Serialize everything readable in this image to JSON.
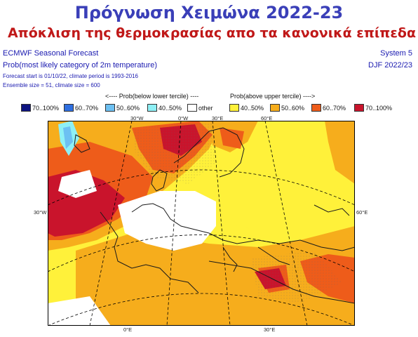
{
  "title": {
    "main": "Πρόγνωση Χειμώνα 2022-23",
    "sub": "Απόκλιση της θερμοκρασίας απο τα κανονικά επίπεδα"
  },
  "header": {
    "left_line1": "ECMWF Seasonal Forecast",
    "left_line2": "Prob(most likely category of 2m temperature)",
    "left_line3": "Forecast start is 01/10/22, climate period is 1993-2016",
    "left_line4": "Ensemble size = 51, climate size = 600",
    "right_line1": "System 5",
    "right_line2": "DJF 2022/23"
  },
  "legend": {
    "lower_caption": "<---- Prob(below lower tercile) ----",
    "upper_caption": "Prob(above upper tercile) ---->",
    "items": [
      {
        "label": "70..100%",
        "color": "#0d1380"
      },
      {
        "label": "60..70%",
        "color": "#2f6fe0"
      },
      {
        "label": "50..60%",
        "color": "#6cc0f2"
      },
      {
        "label": "40..50%",
        "color": "#8ef0f5"
      },
      {
        "label": "other",
        "color": "#ffffff"
      },
      {
        "label": "40..50%",
        "color": "#fff13a"
      },
      {
        "label": "50..60%",
        "color": "#f6ad1c"
      },
      {
        "label": "60..70%",
        "color": "#ee5c1a"
      },
      {
        "label": "70..100%",
        "color": "#c9142c"
      }
    ]
  },
  "map": {
    "lon_labels_top": [
      "30°W",
      "0°W",
      "30°E",
      "60°E"
    ],
    "lon_labels_bottom": [
      "0°E",
      "30°E"
    ],
    "lat_label_left": "30°W",
    "lat_label_right": "60°E"
  }
}
